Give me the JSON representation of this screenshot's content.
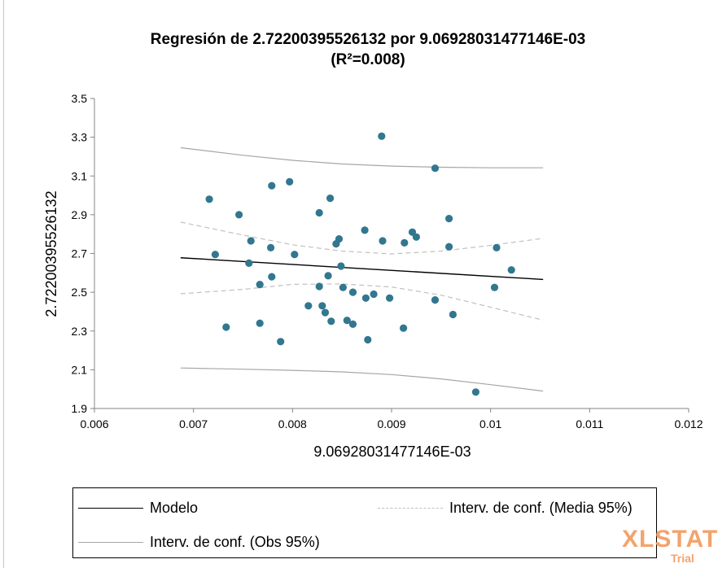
{
  "chart_data": {
    "type": "scatter",
    "title_line1": "Regresión de 2.72200395526132 por 9.06928031477146E-03",
    "title_line2": "(R²=0.008)",
    "xlabel": "9.06928031477146E-03",
    "ylabel": "2.72200395526132",
    "xlim": [
      0.006,
      0.012
    ],
    "ylim": [
      1.9,
      3.5
    ],
    "x_ticks": [
      0.006,
      0.007,
      0.008,
      0.009,
      0.01,
      0.011,
      0.012
    ],
    "x_tick_labels": [
      "0.006",
      "0.007",
      "0.008",
      "0.009",
      "0.01",
      "0.011",
      "0.012"
    ],
    "y_ticks": [
      1.9,
      2.1,
      2.3,
      2.5,
      2.7,
      2.9,
      3.1,
      3.3,
      3.5
    ],
    "y_tick_labels": [
      "1.9",
      "2.1",
      "2.3",
      "2.5",
      "2.7",
      "2.9",
      "3.1",
      "3.3",
      "3.5"
    ],
    "grid": false,
    "points": [
      [
        0.00716,
        2.98
      ],
      [
        0.00722,
        2.695
      ],
      [
        0.00733,
        2.32
      ],
      [
        0.00746,
        2.9
      ],
      [
        0.00756,
        2.65
      ],
      [
        0.00758,
        2.765
      ],
      [
        0.00767,
        2.54
      ],
      [
        0.00767,
        2.34
      ],
      [
        0.00778,
        2.73
      ],
      [
        0.00779,
        3.05
      ],
      [
        0.00779,
        2.58
      ],
      [
        0.00788,
        2.245
      ],
      [
        0.00797,
        3.07
      ],
      [
        0.00802,
        2.695
      ],
      [
        0.00816,
        2.43
      ],
      [
        0.00827,
        2.53
      ],
      [
        0.00827,
        2.91
      ],
      [
        0.0083,
        2.43
      ],
      [
        0.00833,
        2.395
      ],
      [
        0.00836,
        2.585
      ],
      [
        0.00838,
        2.985
      ],
      [
        0.00839,
        2.35
      ],
      [
        0.00844,
        2.75
      ],
      [
        0.00847,
        2.775
      ],
      [
        0.00849,
        2.635
      ],
      [
        0.00851,
        2.525
      ],
      [
        0.00855,
        2.355
      ],
      [
        0.00861,
        2.335
      ],
      [
        0.00861,
        2.5
      ],
      [
        0.00873,
        2.82
      ],
      [
        0.00874,
        2.47
      ],
      [
        0.00876,
        2.255
      ],
      [
        0.00882,
        2.49
      ],
      [
        0.0089,
        3.305
      ],
      [
        0.00891,
        2.765
      ],
      [
        0.00898,
        2.47
      ],
      [
        0.00912,
        2.315
      ],
      [
        0.00913,
        2.755
      ],
      [
        0.00921,
        2.81
      ],
      [
        0.00925,
        2.785
      ],
      [
        0.00944,
        3.14
      ],
      [
        0.00944,
        2.46
      ],
      [
        0.00958,
        2.88
      ],
      [
        0.00958,
        2.735
      ],
      [
        0.00962,
        2.385
      ],
      [
        0.00985,
        1.985
      ],
      [
        0.01004,
        2.525
      ],
      [
        0.01006,
        2.73
      ],
      [
        0.01021,
        2.615
      ]
    ],
    "series": [
      {
        "name": "Modelo",
        "type": "line",
        "color": "#000000",
        "dash": "solid",
        "x": [
          0.00687,
          0.01053
        ],
        "y": [
          2.678,
          2.566
        ]
      },
      {
        "name": "Interv. de conf. (Media 95%)",
        "type": "line",
        "color": "#c0c0c0",
        "dash": "dashed",
        "upper": {
          "x": [
            0.00687,
            0.0075,
            0.008,
            0.0085,
            0.009,
            0.0095,
            0.01,
            0.01053
          ],
          "y": [
            2.862,
            2.795,
            2.745,
            2.712,
            2.698,
            2.712,
            2.742,
            2.778
          ]
        },
        "lower": {
          "x": [
            0.00687,
            0.0075,
            0.008,
            0.0085,
            0.009,
            0.0095,
            0.01,
            0.01053
          ],
          "y": [
            2.492,
            2.515,
            2.541,
            2.543,
            2.527,
            2.485,
            2.423,
            2.356
          ]
        }
      },
      {
        "name": "Interv. de conf. (Obs 95%)",
        "type": "line",
        "color": "#a6a6a6",
        "dash": "solid",
        "upper": {
          "x": [
            0.00687,
            0.0075,
            0.008,
            0.0085,
            0.009,
            0.0095,
            0.01,
            0.01053
          ],
          "y": [
            3.246,
            3.207,
            3.181,
            3.162,
            3.151,
            3.145,
            3.142,
            3.142
          ]
        },
        "lower": {
          "x": [
            0.00687,
            0.0075,
            0.008,
            0.0085,
            0.009,
            0.0095,
            0.01,
            0.01053
          ],
          "y": [
            2.109,
            2.103,
            2.097,
            2.089,
            2.075,
            2.053,
            2.023,
            1.99
          ]
        }
      }
    ],
    "point_color": "#31778f",
    "legend_placement": "bottom"
  },
  "legend": {
    "model_label": "Modelo",
    "mean_ci_label": "Interv. de conf. (Media 95%)",
    "obs_ci_label": "Interv. de conf. (Obs 95%)"
  },
  "watermark": {
    "brand": "XLSTAT",
    "sub": "Trial"
  }
}
